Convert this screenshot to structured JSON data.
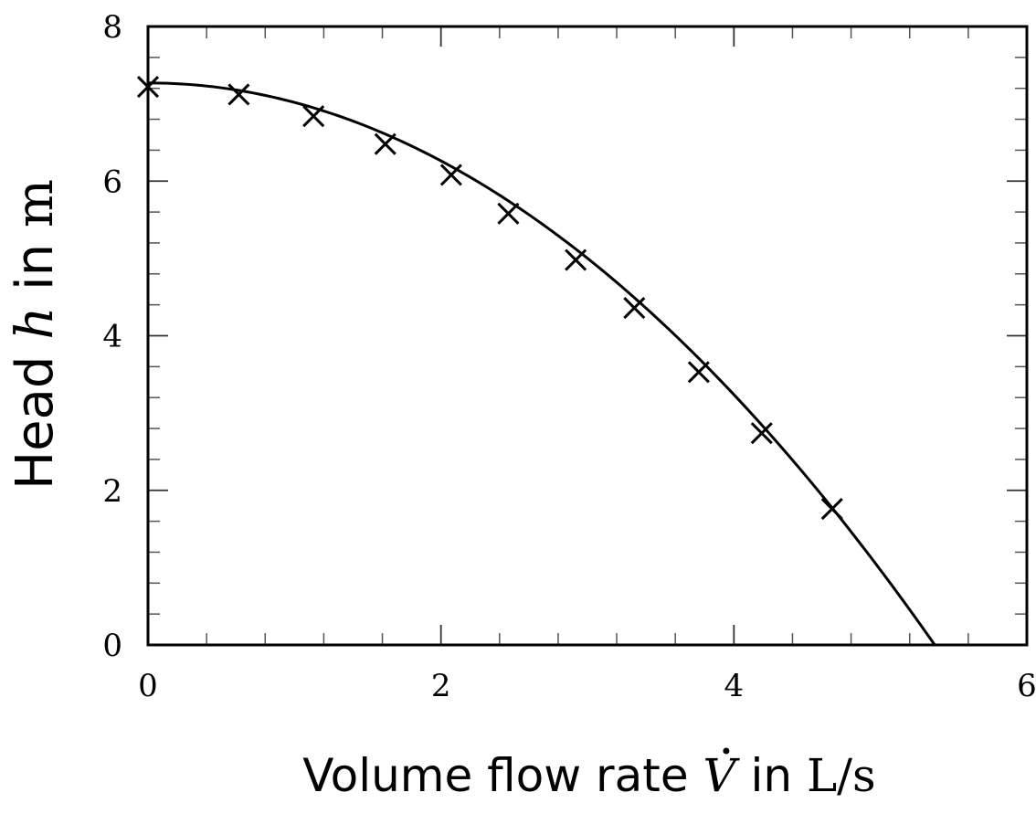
{
  "chart_data": {
    "type": "scatter",
    "title": "",
    "xlabel": {
      "prefix": "Volume flow rate ",
      "symbol": "V",
      "mid": " in ",
      "unit": "L/s"
    },
    "ylabel": {
      "prefix": "Head ",
      "symbol": "h",
      "mid": " in ",
      "unit": "m"
    },
    "xlim": [
      0,
      6
    ],
    "ylim": [
      0,
      8
    ],
    "xticks": [
      0,
      2,
      4,
      6
    ],
    "yticks": [
      0,
      2,
      4,
      6,
      8
    ],
    "minor_x_step": 0.4,
    "minor_y_step": 0.4,
    "grid": false,
    "series": [
      {
        "kind": "markers",
        "marker": "x",
        "color": "#000000",
        "x": [
          0,
          0.62,
          1.13,
          1.62,
          2.07,
          2.46,
          2.92,
          3.32,
          3.76,
          4.19,
          4.67
        ],
        "y": [
          7.22,
          7.12,
          6.84,
          6.48,
          6.08,
          5.58,
          4.98,
          4.36,
          3.53,
          2.74,
          1.76
        ]
      },
      {
        "kind": "line",
        "color": "#000000",
        "fit": {
          "a": 7.27,
          "b": 0.0,
          "c": -0.252
        },
        "x_range": [
          0,
          5.37
        ]
      }
    ]
  }
}
